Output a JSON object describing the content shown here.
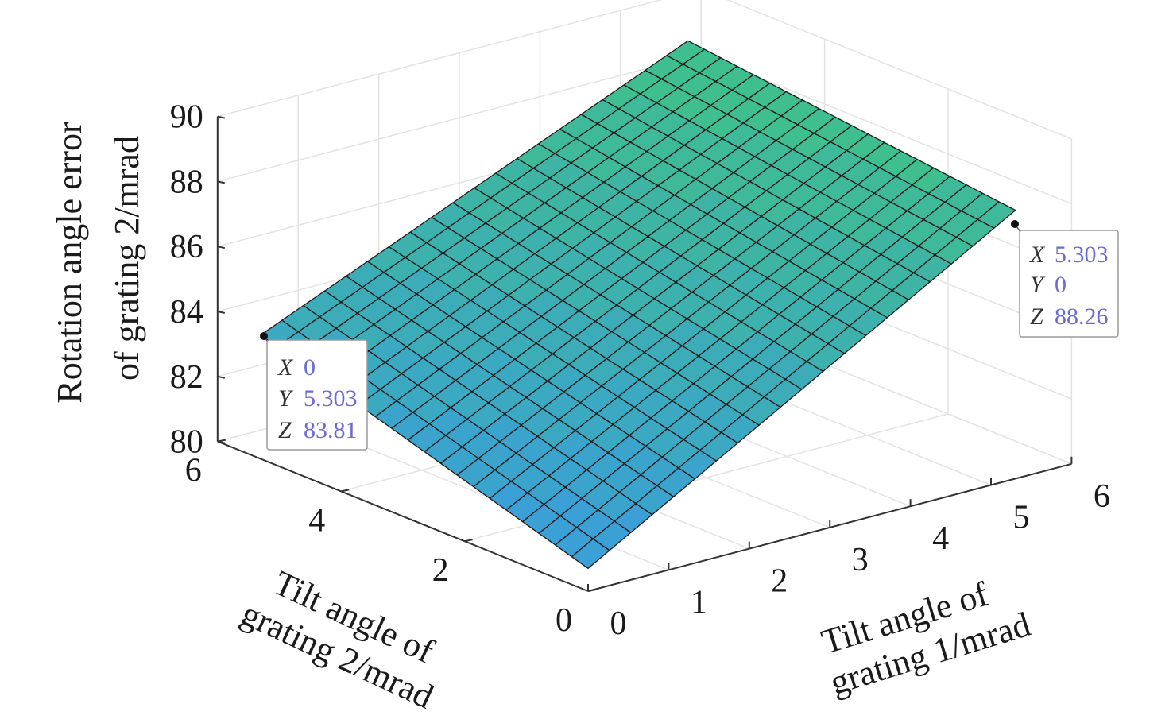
{
  "chart_data": {
    "type": "surface",
    "xlabel": [
      "Tilt angle of",
      "grating 1/mrad"
    ],
    "ylabel": [
      "Tilt angle of",
      "grating 2/mrad"
    ],
    "zlabel": [
      "Rotation angle error",
      "of grating 2/mrad"
    ],
    "xlim": [
      0,
      6
    ],
    "ylim": [
      0,
      6
    ],
    "zlim": [
      80,
      90
    ],
    "xticks": [
      "0",
      "1",
      "2",
      "3",
      "4",
      "5",
      "6"
    ],
    "yticks": [
      "0",
      "2",
      "4",
      "6"
    ],
    "zticks": [
      "80",
      "82",
      "84",
      "86",
      "88",
      "90"
    ],
    "grid": true,
    "x_range": [
      0,
      5.303
    ],
    "y_range": [
      0,
      5.303
    ],
    "mesh_divisions": 20,
    "surface_corners": [
      {
        "x": 0,
        "y": 0,
        "z": 80.7
      },
      {
        "x": 5.303,
        "y": 0,
        "z": 88.26
      },
      {
        "x": 0,
        "y": 5.303,
        "z": 83.81
      },
      {
        "x": 5.303,
        "y": 5.303,
        "z": 89.4
      }
    ],
    "colors": {
      "low": "#3aa0d6",
      "high": "#3fbe90",
      "mesh": "#1a1a1a"
    },
    "datatips": [
      {
        "rows": [
          {
            "key": "X",
            "value": "5.303"
          },
          {
            "key": "Y",
            "value": "0"
          },
          {
            "key": "Z",
            "value": "88.26"
          }
        ]
      },
      {
        "rows": [
          {
            "key": "X",
            "value": "0"
          },
          {
            "key": "Y",
            "value": "5.303"
          },
          {
            "key": "Z",
            "value": "83.81"
          }
        ]
      }
    ]
  }
}
